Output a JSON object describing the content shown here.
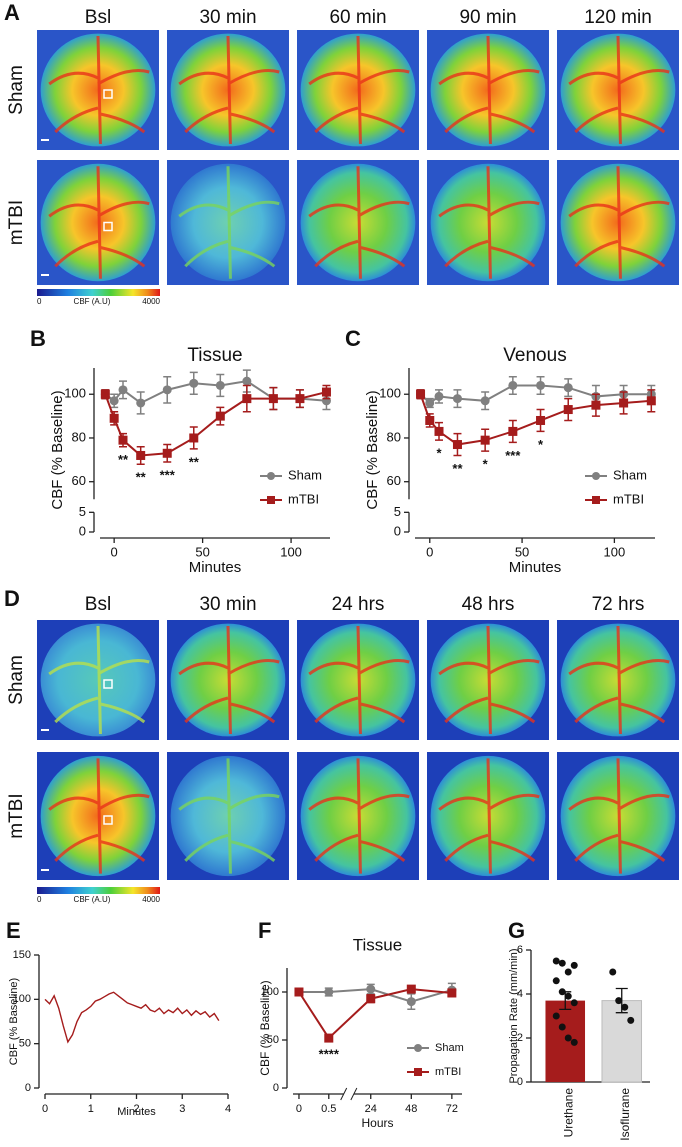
{
  "panel_a": {
    "label": "A",
    "columns": [
      "Bsl",
      "30 min",
      "60 min",
      "90 min",
      "120 min"
    ],
    "rows": [
      "Sham",
      "mTBI"
    ],
    "colorbar": [
      "0",
      "CBF (A.U)",
      "4000"
    ]
  },
  "panel_d": {
    "label": "D",
    "columns": [
      "Bsl",
      "30 min",
      "24 hrs",
      "48 hrs",
      "72 hrs"
    ],
    "rows": [
      "Sham",
      "mTBI"
    ],
    "colorbar": [
      "0",
      "CBF (A.U)",
      "4000"
    ]
  },
  "chart_data": [
    {
      "type": "line",
      "panel": "B",
      "title": "Tissue",
      "xlabel": "Minutes",
      "ylabel": "CBF (% Baseline)",
      "x": [
        -5,
        0,
        5,
        15,
        30,
        45,
        60,
        75,
        90,
        105,
        120
      ],
      "series": [
        {
          "name": "Sham",
          "color": "#808080",
          "marker": "circle",
          "values": [
            100,
            97,
            102,
            96,
            102,
            105,
            104,
            106,
            98,
            98,
            97
          ],
          "errors": [
            2,
            3,
            4,
            5,
            6,
            5,
            5,
            5,
            5,
            4,
            4
          ]
        },
        {
          "name": "mTBI",
          "color": "#a51c1c",
          "marker": "square",
          "values": [
            100,
            89,
            79,
            72,
            73,
            80,
            90,
            98,
            98,
            98,
            101
          ],
          "errors": [
            2,
            3,
            3,
            4,
            4,
            5,
            4,
            6,
            5,
            4,
            3
          ]
        }
      ],
      "annotations": [
        {
          "text": "**",
          "x": 5
        },
        {
          "text": "**",
          "x": 15
        },
        {
          "text": "***",
          "x": 30
        },
        {
          "text": "**",
          "x": 45
        }
      ],
      "xlim": [
        -8,
        122
      ],
      "xticks": [
        0,
        50,
        100
      ],
      "ylim": [
        0,
        112
      ],
      "ybreak": [
        5,
        52
      ],
      "yticks": [
        0,
        5,
        60,
        80,
        100
      ],
      "legend": "lower right"
    },
    {
      "type": "line",
      "panel": "C",
      "title": "Venous",
      "xlabel": "Minutes",
      "ylabel": "CBF (% Baseline)",
      "x": [
        -5,
        0,
        5,
        15,
        30,
        45,
        60,
        75,
        90,
        105,
        120
      ],
      "series": [
        {
          "name": "Sham",
          "color": "#808080",
          "marker": "circle",
          "values": [
            100,
            96,
            99,
            98,
            97,
            104,
            104,
            103,
            99,
            100,
            100
          ],
          "errors": [
            2,
            2,
            3,
            4,
            4,
            4,
            4,
            4,
            5,
            4,
            4
          ]
        },
        {
          "name": "mTBI",
          "color": "#a51c1c",
          "marker": "square",
          "values": [
            100,
            88,
            83,
            77,
            79,
            83,
            88,
            93,
            95,
            96,
            97
          ],
          "errors": [
            2,
            3,
            4,
            5,
            5,
            5,
            5,
            5,
            5,
            5,
            5
          ]
        }
      ],
      "annotations": [
        {
          "text": "*",
          "x": 5
        },
        {
          "text": "**",
          "x": 15
        },
        {
          "text": "*",
          "x": 30
        },
        {
          "text": "***",
          "x": 45
        },
        {
          "text": "*",
          "x": 60
        }
      ],
      "xlim": [
        -8,
        122
      ],
      "xticks": [
        0,
        50,
        100
      ],
      "ylim": [
        0,
        112
      ],
      "ybreak": [
        5,
        52
      ],
      "yticks": [
        0,
        5,
        60,
        80,
        100
      ],
      "legend": "lower right"
    },
    {
      "type": "line",
      "panel": "E",
      "xlabel": "Minutes",
      "ylabel": "CBF (% Baseline)",
      "x": [
        0,
        0.1,
        0.2,
        0.3,
        0.4,
        0.5,
        0.6,
        0.7,
        0.8,
        0.9,
        1.0,
        1.1,
        1.2,
        1.3,
        1.4,
        1.5,
        1.6,
        1.7,
        1.8,
        1.9,
        2.0,
        2.1,
        2.2,
        2.3,
        2.4,
        2.5,
        2.6,
        2.7,
        2.8,
        2.9,
        3.0,
        3.1,
        3.2,
        3.3,
        3.4,
        3.5,
        3.6,
        3.7,
        3.8
      ],
      "series": [
        {
          "color": "#a51c1c",
          "values": [
            100,
            95,
            104,
            90,
            70,
            52,
            60,
            75,
            85,
            88,
            92,
            98,
            100,
            103,
            106,
            108,
            104,
            100,
            96,
            94,
            92,
            90,
            94,
            88,
            86,
            90,
            84,
            88,
            85,
            90,
            84,
            88,
            82,
            87,
            83,
            86,
            80,
            84,
            76
          ]
        }
      ],
      "xlim": [
        0,
        4
      ],
      "xticks": [
        0,
        1,
        2,
        3,
        4
      ],
      "ylim": [
        0,
        150
      ],
      "yticks": [
        0,
        50,
        100,
        150
      ]
    },
    {
      "type": "line",
      "panel": "F",
      "title": "Tissue",
      "xlabel": "Hours",
      "ylabel": "CBF (% Baseline)",
      "x": [
        0,
        0.5,
        24,
        48,
        72
      ],
      "series": [
        {
          "name": "Sham",
          "color": "#808080",
          "marker": "circle",
          "values": [
            100,
            100,
            103,
            90,
            102
          ],
          "errors": [
            2,
            4,
            5,
            8,
            7
          ]
        },
        {
          "name": "mTBI",
          "color": "#a51c1c",
          "marker": "square",
          "values": [
            100,
            52,
            93,
            103,
            99
          ],
          "errors": [
            2,
            3,
            4,
            3,
            3
          ]
        }
      ],
      "annotations": [
        {
          "text": "****",
          "x": 0.5
        }
      ],
      "xlim": [
        -0.1,
        78
      ],
      "xbreak": [
        0.75,
        14
      ],
      "xticks": [
        0,
        0.5,
        24,
        48,
        72
      ],
      "ylim": [
        0,
        125
      ],
      "yticks": [
        0,
        50,
        100
      ],
      "legend": "lower right"
    },
    {
      "type": "bar",
      "panel": "G",
      "ylabel": "Propagation Rate (mm/min)",
      "categories": [
        "Urethane",
        "Isoflurane"
      ],
      "values": [
        3.7,
        3.7
      ],
      "errors": [
        0.4,
        0.55
      ],
      "colors": [
        "#a51c1c",
        "#d9d9d9"
      ],
      "points": [
        [
          5.5,
          5.4,
          5.0,
          5.3,
          4.6,
          4.1,
          3.9,
          3.6,
          3.0,
          2.5,
          2.0,
          1.8
        ],
        [
          5.0,
          3.7,
          3.4,
          2.8
        ]
      ],
      "ylim": [
        0,
        6
      ],
      "yticks": [
        0,
        2,
        4,
        6
      ]
    }
  ]
}
